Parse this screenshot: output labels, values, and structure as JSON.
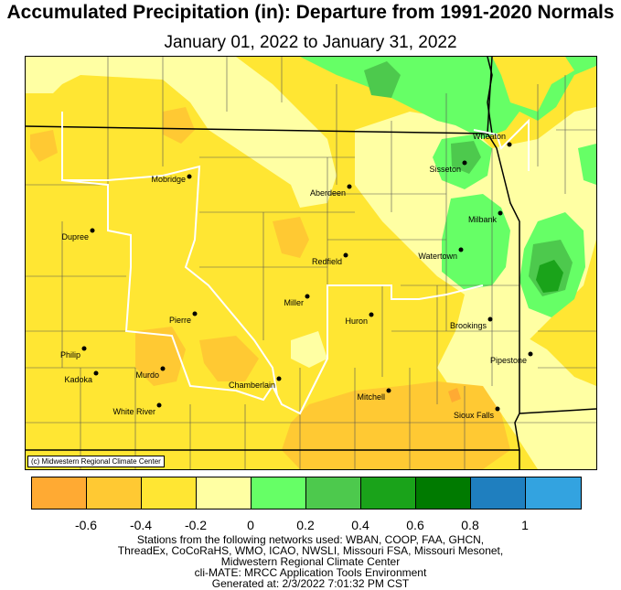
{
  "header": {
    "title": "Accumulated Precipitation (in): Departure from 1991-2020 Normals",
    "subtitle": "January 01, 2022 to January 31, 2022"
  },
  "map": {
    "credit": "(c) Midwestern Regional Climate Center",
    "stations": [
      {
        "name": "Mobridge"
      },
      {
        "name": "Aberdeen"
      },
      {
        "name": "Wheaton"
      },
      {
        "name": "Sisseton"
      },
      {
        "name": "Milbank"
      },
      {
        "name": "Dupree"
      },
      {
        "name": "Watertown"
      },
      {
        "name": "Redfield"
      },
      {
        "name": "Miller"
      },
      {
        "name": "Pierre"
      },
      {
        "name": "Huron"
      },
      {
        "name": "Brookings"
      },
      {
        "name": "Philip"
      },
      {
        "name": "Pipestone"
      },
      {
        "name": "Kadoka"
      },
      {
        "name": "Murdo"
      },
      {
        "name": "Chamberlain"
      },
      {
        "name": "Mitchell"
      },
      {
        "name": "White River"
      },
      {
        "name": "Sioux Falls"
      }
    ]
  },
  "legend": {
    "colors": [
      "#ffaa33",
      "#ffc933",
      "#ffe633",
      "#ffffa3",
      "#66ff66",
      "#4dc94d",
      "#1aa31a",
      "#007a00",
      "#1f7fbf",
      "#33a3e0"
    ],
    "ticks": [
      "-0.6",
      "-0.4",
      "-0.2",
      "0",
      "0.2",
      "0.4",
      "0.6",
      "0.8",
      "1"
    ]
  },
  "footer": {
    "lines": [
      "Stations from the following networks used: WBAN, COOP, FAA, GHCN,",
      "ThreadEx, CoCoRaHS, WMO, ICAO, NWSLI, Missouri FSA, Missouri Mesonet,",
      "Midwestern Regional Climate Center",
      "cli-MATE: MRCC Application Tools Environment",
      "Generated at: 2/3/2022 7:01:32 PM CST"
    ]
  }
}
